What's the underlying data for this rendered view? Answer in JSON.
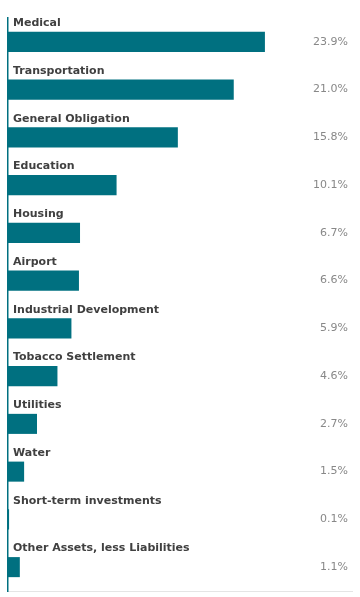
{
  "chart_data": {
    "type": "bar",
    "orientation": "horizontal",
    "categories": [
      "Medical",
      "Transportation",
      "General Obligation",
      "Education",
      "Housing",
      "Airport",
      "Industrial Development",
      "Tobacco Settlement",
      "Utilities",
      "Water",
      "Short-term investments",
      "Other Assets, less Liabilities"
    ],
    "values": [
      23.9,
      21.0,
      15.8,
      10.1,
      6.7,
      6.6,
      5.9,
      4.6,
      2.7,
      1.5,
      0.1,
      1.1
    ],
    "value_labels": [
      "23.9%",
      "21.0%",
      "15.8%",
      "10.1%",
      "6.7%",
      "6.6%",
      "5.9%",
      "4.6%",
      "2.7%",
      "1.5%",
      "0.1%",
      "1.1%"
    ],
    "color": "#007080",
    "xlim": [
      0,
      32
    ],
    "tick_labels": false,
    "grid": false,
    "data_labels": true
  }
}
